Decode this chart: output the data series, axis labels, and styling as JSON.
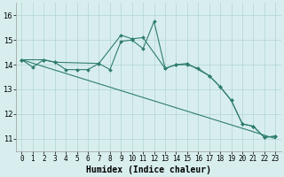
{
  "xlabel": "Humidex (Indice chaleur)",
  "bg_color": "#d8eeee",
  "grid_color": "#b8d8d8",
  "line_color": "#2e7d6e",
  "xlim": [
    -0.5,
    23.5
  ],
  "ylim": [
    10.5,
    16.5
  ],
  "yticks": [
    11,
    12,
    13,
    14,
    15,
    16
  ],
  "xticks": [
    0,
    1,
    2,
    3,
    4,
    5,
    6,
    7,
    8,
    9,
    10,
    11,
    12,
    13,
    14,
    15,
    16,
    17,
    18,
    19,
    20,
    21,
    22,
    23
  ],
  "series1_x": [
    0,
    1,
    2,
    3,
    4,
    5,
    6,
    7,
    8,
    9,
    10,
    11,
    12,
    13,
    14,
    15,
    16,
    17,
    18,
    19,
    20,
    21,
    22,
    23
  ],
  "series1_y": [
    14.2,
    13.9,
    14.2,
    14.1,
    13.8,
    13.8,
    13.8,
    14.05,
    13.8,
    14.95,
    15.0,
    14.65,
    15.75,
    13.85,
    14.0,
    14.0,
    13.85,
    13.55,
    13.1,
    12.55,
    11.6,
    11.5,
    11.05,
    11.1
  ],
  "series2_x": [
    0,
    2,
    3,
    7,
    9,
    10,
    11,
    13,
    14,
    15,
    17,
    18,
    19,
    20,
    21,
    22,
    23
  ],
  "series2_y": [
    14.2,
    14.2,
    14.1,
    14.05,
    15.2,
    15.05,
    15.1,
    13.85,
    14.0,
    14.05,
    13.55,
    13.1,
    12.55,
    11.6,
    11.5,
    11.05,
    11.1
  ],
  "trend_x": [
    0,
    23
  ],
  "trend_y": [
    14.2,
    11.0
  ]
}
